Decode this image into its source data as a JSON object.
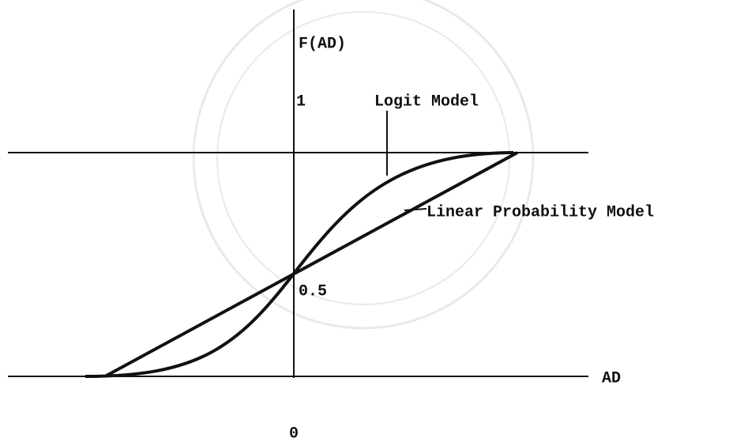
{
  "axis": {
    "y_label": "F(AD)",
    "x_label": "AD",
    "origin": "0"
  },
  "levels": {
    "one": "1",
    "half": "0.5"
  },
  "curves": {
    "logit": "Logit Model",
    "linear": "Linear Probability Model"
  }
}
